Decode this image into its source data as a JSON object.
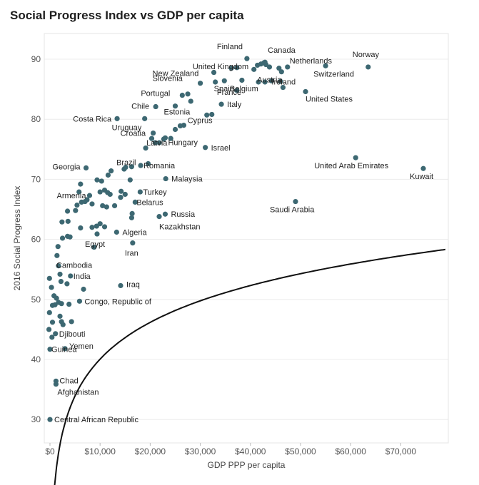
{
  "chart_data": {
    "type": "scatter",
    "title": "Social Progress Index vs GDP per capita",
    "xlabel": "GDP PPP per capita",
    "ylabel": "2016 Social Progress Index",
    "xlim": [
      -1200,
      80000
    ],
    "ylim": [
      27.5,
      93.5
    ],
    "xticks": [
      0,
      10000,
      20000,
      30000,
      40000,
      50000,
      60000,
      70000
    ],
    "xtick_labels": [
      "$0",
      "$10,000",
      "$20,000",
      "$30,000",
      "$40,000",
      "$50,000",
      "$60,000",
      "$70,000"
    ],
    "yticks": [
      30,
      40,
      50,
      60,
      70,
      80,
      90
    ],
    "ytick_labels": [
      "30",
      "40",
      "50",
      "60",
      "70",
      "80",
      "90"
    ],
    "point_color": "#3d6872",
    "trend_color": "#111111",
    "trendline": {
      "model": "logarithmic",
      "a": 8.84,
      "b": 19.7
    },
    "labeled_points": [
      {
        "name": "Finland",
        "x": 39300,
        "y": 90.1
      },
      {
        "name": "Canada",
        "x": 42900,
        "y": 89.5
      },
      {
        "name": "United Kingdom",
        "x": 37300,
        "y": 88.6
      },
      {
        "name": "Netherlands",
        "x": 47400,
        "y": 88.7
      },
      {
        "name": "Norway",
        "x": 63500,
        "y": 88.7
      },
      {
        "name": "New Zealand",
        "x": 32700,
        "y": 87.8
      },
      {
        "name": "Switzerland",
        "x": 55000,
        "y": 88.9
      },
      {
        "name": "Slovenia",
        "x": 30000,
        "y": 86.0
      },
      {
        "name": "Austria",
        "x": 44200,
        "y": 86.4
      },
      {
        "name": "Spain",
        "x": 33000,
        "y": 86.2
      },
      {
        "name": "Ireland",
        "x": 46500,
        "y": 85.3
      },
      {
        "name": "Belgium",
        "x": 41600,
        "y": 86.2
      },
      {
        "name": "Portugal",
        "x": 26400,
        "y": 84.0
      },
      {
        "name": "France",
        "x": 37300,
        "y": 84.8
      },
      {
        "name": "United States",
        "x": 51000,
        "y": 84.6
      },
      {
        "name": "Chile",
        "x": 21100,
        "y": 82.1
      },
      {
        "name": "Italy",
        "x": 34200,
        "y": 82.5
      },
      {
        "name": "Estonia",
        "x": 25000,
        "y": 82.2
      },
      {
        "name": "Costa Rica",
        "x": 13400,
        "y": 80.1
      },
      {
        "name": "Uruguay",
        "x": 18900,
        "y": 80.1
      },
      {
        "name": "Cyprus",
        "x": 32300,
        "y": 80.8
      },
      {
        "name": "Croatia",
        "x": 20600,
        "y": 77.7
      },
      {
        "name": "Hungary",
        "x": 23000,
        "y": 76.9
      },
      {
        "name": "Israel",
        "x": 31000,
        "y": 75.3
      },
      {
        "name": "Latvia",
        "x": 21800,
        "y": 76.1
      },
      {
        "name": "Brazil",
        "x": 15100,
        "y": 72.0
      },
      {
        "name": "Romania",
        "x": 18100,
        "y": 72.3
      },
      {
        "name": "United Arab Emirates",
        "x": 61000,
        "y": 73.6
      },
      {
        "name": "Georgia",
        "x": 7200,
        "y": 71.9
      },
      {
        "name": "Malaysia",
        "x": 23100,
        "y": 70.1
      },
      {
        "name": "Kuwait",
        "x": 74500,
        "y": 71.8
      },
      {
        "name": "Armenia",
        "x": 7900,
        "y": 67.3
      },
      {
        "name": "Turkey",
        "x": 18000,
        "y": 67.9
      },
      {
        "name": "Belarus",
        "x": 17000,
        "y": 66.2
      },
      {
        "name": "Saudi Arabia",
        "x": 49000,
        "y": 66.3
      },
      {
        "name": "Russia",
        "x": 23000,
        "y": 64.2
      },
      {
        "name": "Kazakhstan",
        "x": 21800,
        "y": 63.8
      },
      {
        "name": "Algeria",
        "x": 13300,
        "y": 61.2
      },
      {
        "name": "Egypt",
        "x": 9400,
        "y": 60.9
      },
      {
        "name": "Iran",
        "x": 16500,
        "y": 59.4
      },
      {
        "name": "Cambodia",
        "x": 1700,
        "y": 55.6
      },
      {
        "name": "India",
        "x": 4100,
        "y": 53.9
      },
      {
        "name": "Iraq",
        "x": 14100,
        "y": 52.3
      },
      {
        "name": "Congo, Republic of",
        "x": 5900,
        "y": 49.7
      },
      {
        "name": "Djibouti",
        "x": 1100,
        "y": 44.3
      },
      {
        "name": "Yemen",
        "x": 3000,
        "y": 41.8
      },
      {
        "name": "Guinea",
        "x": 0,
        "y": 41.7
      },
      {
        "name": "Chad",
        "x": 1200,
        "y": 36.4
      },
      {
        "name": "Afghanistan",
        "x": 1200,
        "y": 35.9
      },
      {
        "name": "Central African Republic",
        "x": 0,
        "y": 30.0
      }
    ],
    "other_points": [
      {
        "x": 1600,
        "y": 58.8
      },
      {
        "x": 1400,
        "y": 57.3
      },
      {
        "x": 2000,
        "y": 54.2
      },
      {
        "x": 2200,
        "y": 53.0
      },
      {
        "x": -100,
        "y": 53.5
      },
      {
        "x": 300,
        "y": 52.0
      },
      {
        "x": 800,
        "y": 50.6
      },
      {
        "x": 1300,
        "y": 50.2
      },
      {
        "x": 1700,
        "y": 49.5
      },
      {
        "x": 500,
        "y": 49.0
      },
      {
        "x": 1000,
        "y": 49.1
      },
      {
        "x": 2300,
        "y": 49.3
      },
      {
        "x": 3800,
        "y": 49.2
      },
      {
        "x": 3400,
        "y": 52.6
      },
      {
        "x": 6700,
        "y": 51.7
      },
      {
        "x": -100,
        "y": 47.8
      },
      {
        "x": 2000,
        "y": 47.2
      },
      {
        "x": 2300,
        "y": 46.3
      },
      {
        "x": 2600,
        "y": 45.8
      },
      {
        "x": 500,
        "y": 46.2
      },
      {
        "x": 4300,
        "y": 46.3
      },
      {
        "x": -200,
        "y": 45.0
      },
      {
        "x": 400,
        "y": 43.7
      },
      {
        "x": 2400,
        "y": 62.9
      },
      {
        "x": 3600,
        "y": 63.0
      },
      {
        "x": 3500,
        "y": 64.7
      },
      {
        "x": 5100,
        "y": 64.8
      },
      {
        "x": 5400,
        "y": 65.7
      },
      {
        "x": 6300,
        "y": 66.2
      },
      {
        "x": 5800,
        "y": 67.9
      },
      {
        "x": 7000,
        "y": 66.3
      },
      {
        "x": 7400,
        "y": 66.6
      },
      {
        "x": 6100,
        "y": 69.2
      },
      {
        "x": 8400,
        "y": 65.9
      },
      {
        "x": 9400,
        "y": 69.9
      },
      {
        "x": 10300,
        "y": 69.7
      },
      {
        "x": 10000,
        "y": 67.9
      },
      {
        "x": 10900,
        "y": 68.2
      },
      {
        "x": 11500,
        "y": 67.8
      },
      {
        "x": 12000,
        "y": 67.5
      },
      {
        "x": 11600,
        "y": 70.7
      },
      {
        "x": 12200,
        "y": 71.4
      },
      {
        "x": 14800,
        "y": 71.7
      },
      {
        "x": 16300,
        "y": 72.1
      },
      {
        "x": 16000,
        "y": 69.9
      },
      {
        "x": 14200,
        "y": 68.0
      },
      {
        "x": 15000,
        "y": 67.5
      },
      {
        "x": 14100,
        "y": 67.0
      },
      {
        "x": 11300,
        "y": 65.4
      },
      {
        "x": 10500,
        "y": 65.6
      },
      {
        "x": 16400,
        "y": 64.3
      },
      {
        "x": 16300,
        "y": 63.6
      },
      {
        "x": 8400,
        "y": 62.0
      },
      {
        "x": 9300,
        "y": 62.2
      },
      {
        "x": 10000,
        "y": 62.6
      },
      {
        "x": 10900,
        "y": 62.1
      },
      {
        "x": 2500,
        "y": 60.2
      },
      {
        "x": 3500,
        "y": 60.5
      },
      {
        "x": 4000,
        "y": 60.4
      },
      {
        "x": 6100,
        "y": 61.9
      },
      {
        "x": 21000,
        "y": 76.1
      },
      {
        "x": 22700,
        "y": 76.7
      },
      {
        "x": 24100,
        "y": 76.8
      },
      {
        "x": 25000,
        "y": 78.3
      },
      {
        "x": 26000,
        "y": 78.9
      },
      {
        "x": 20300,
        "y": 76.8
      },
      {
        "x": 26700,
        "y": 79.0
      },
      {
        "x": 31300,
        "y": 80.7
      },
      {
        "x": 28100,
        "y": 83.0
      },
      {
        "x": 27500,
        "y": 84.2
      },
      {
        "x": 40700,
        "y": 88.3
      },
      {
        "x": 42100,
        "y": 89.2
      },
      {
        "x": 42700,
        "y": 89.4
      },
      {
        "x": 43100,
        "y": 89.1
      },
      {
        "x": 43800,
        "y": 88.7
      },
      {
        "x": 45700,
        "y": 88.5
      },
      {
        "x": 46000,
        "y": 86.3
      },
      {
        "x": 42900,
        "y": 86.2
      },
      {
        "x": 36200,
        "y": 88.5
      },
      {
        "x": 34800,
        "y": 86.4
      },
      {
        "x": 38300,
        "y": 86.5
      },
      {
        "x": 46200,
        "y": 87.9
      },
      {
        "x": 41400,
        "y": 89.0
      },
      {
        "x": 19100,
        "y": 75.2
      },
      {
        "x": 19600,
        "y": 72.6
      },
      {
        "x": 12900,
        "y": 65.6
      },
      {
        "x": 8800,
        "y": 58.7
      }
    ]
  }
}
